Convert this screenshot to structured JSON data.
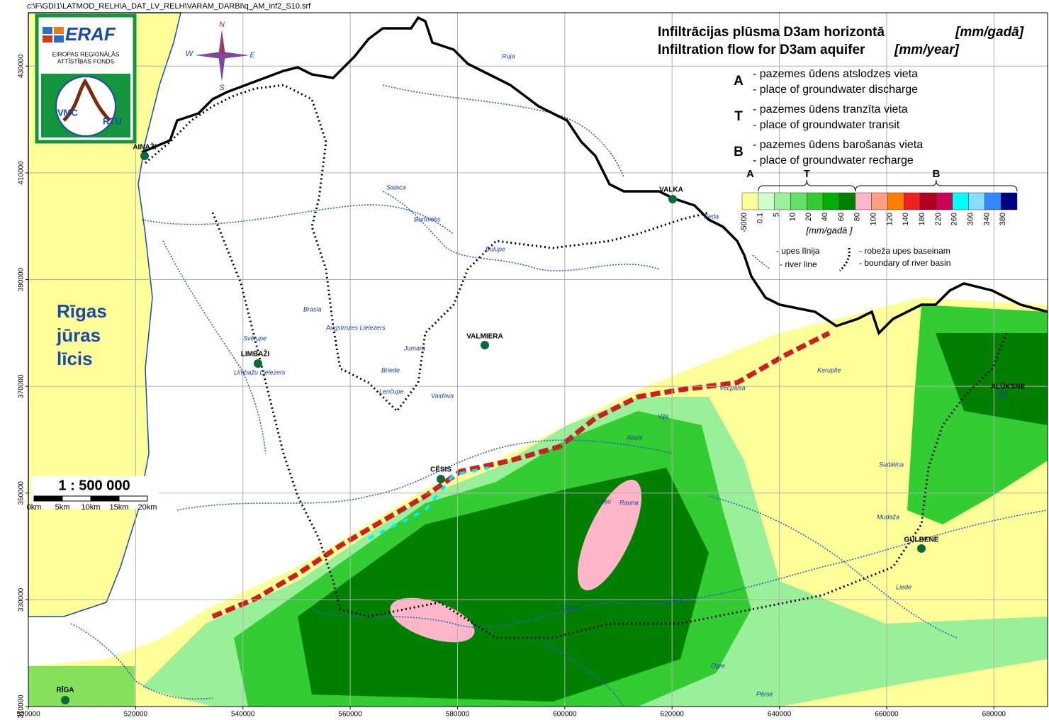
{
  "header": {
    "file_path": "c:\\F\\GDI1\\LATMOD_RELH\\A_DAT_LV_RELH\\VARAM_DARBI\\q_AM_inf2_S10.srf"
  },
  "logo": {
    "eraf": "ERAF",
    "line1": "EIROPAS REĢIONĀLĀS",
    "line2": "ATTĪSTĪBAS FONDS",
    "vmc": "VMC",
    "rtu": "RTU"
  },
  "compass": {
    "n": "N",
    "w": "W",
    "e": "E",
    "s": "S"
  },
  "title": {
    "lv": "Infiltrācijas plūsma D3am horizontā",
    "lv_unit": "[mm/gadā]",
    "en": "Infiltration flow for D3am aquifer",
    "en_unit": "[mm/year]"
  },
  "zones": [
    {
      "letter": "A",
      "lv": "- pazemes ūdens atslodzes vieta",
      "en": "- place of groundwater discharge"
    },
    {
      "letter": "T",
      "lv": "- pazemes ūdens tranzīta  vieta",
      "en": "- place of groundwater transit"
    },
    {
      "letter": "B",
      "lv": "- pazemes ūdens  barošanas  vieta",
      "en": "- place of groundwater   recharge"
    }
  ],
  "color_legend": {
    "groups": [
      "A",
      "T",
      "B"
    ],
    "labels": [
      -5000,
      0.1,
      5,
      10,
      20,
      40,
      60,
      80,
      100,
      120,
      140,
      180,
      220,
      260,
      300,
      340,
      380
    ],
    "colors": [
      "#ffff99",
      "#ccffcc",
      "#99f099",
      "#66e066",
      "#33cc33",
      "#00b000",
      "#007f00",
      "#ffb6c8",
      "#ffa080",
      "#ff8000",
      "#ee2020",
      "#b00020",
      "#cc0055",
      "#00ffff",
      "#88ddff",
      "#3388ff",
      "#000080"
    ],
    "unit": "[mm/gadā ]"
  },
  "line_legend": {
    "river_lv": "- upes līnija",
    "river_en": "- river line",
    "basin_lv": "- robeža upes baseinam",
    "basin_en": "- boundary of river basin"
  },
  "sea": [
    "Rīgas",
    "jūras",
    "līcis"
  ],
  "scale": {
    "ratio": "1 : 500 000",
    "labels": [
      "0km",
      "5km",
      "10km",
      "15km",
      "20km"
    ]
  },
  "map": {
    "xlim": [
      500000,
      690000
    ],
    "ylim": [
      310000,
      440000
    ],
    "xticks": [
      500000,
      520000,
      540000,
      560000,
      580000,
      600000,
      620000,
      640000,
      660000,
      680000
    ],
    "yticks": [
      310000,
      330000,
      350000,
      370000,
      390000,
      410000,
      430000
    ],
    "grid": true
  },
  "cities": [
    "AINAŽI",
    "VALKA",
    "LIMBAŽI",
    "VALMIERA",
    "CĒSIS",
    "ALŪKSNE",
    "GULBENE",
    "RĪGA"
  ],
  "rivers": [
    "Ruja",
    "Salaca",
    "Burtnieks",
    "Seda",
    "Bulupe",
    "Svētupe",
    "Brasla",
    "Limbažu Lielezers",
    "Augstrozes Lielezers",
    "Jumara",
    "Briede",
    "Lenčupe",
    "Vaidava",
    "Gauja",
    "Tirza",
    "Vija",
    "Vecpalsa",
    "Mudaža",
    "Liede",
    "Ogre",
    "Abuls",
    "Rauna",
    "Pērse",
    "Sudaliņa",
    "Kerupīte",
    "Ieriķu"
  ]
}
